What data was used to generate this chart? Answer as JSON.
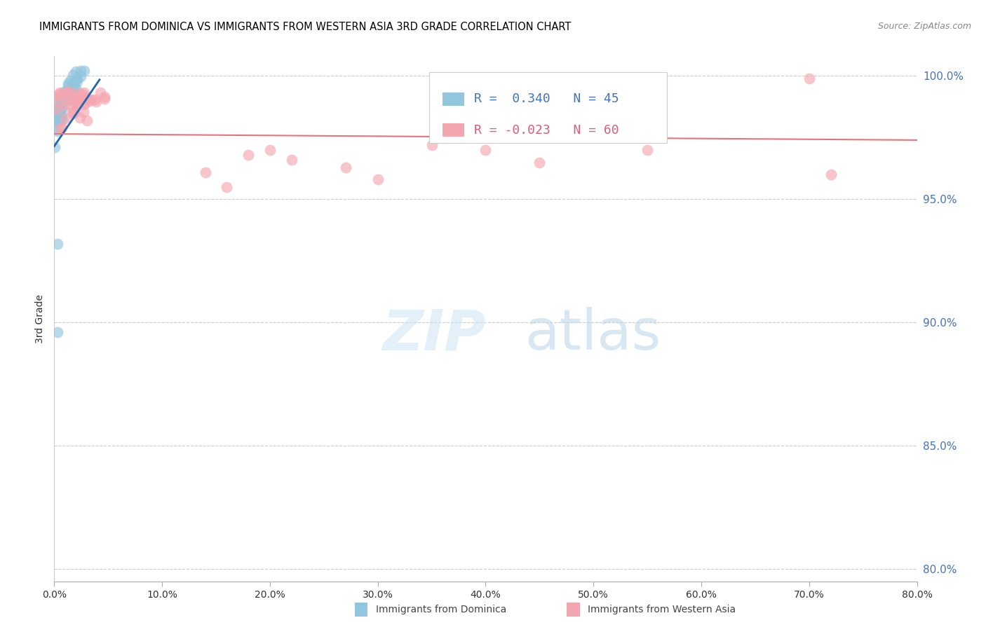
{
  "title": "IMMIGRANTS FROM DOMINICA VS IMMIGRANTS FROM WESTERN ASIA 3RD GRADE CORRELATION CHART",
  "source": "Source: ZipAtlas.com",
  "ylabel": "3rd Grade",
  "legend_label1": "Immigrants from Dominica",
  "legend_label2": "Immigrants from Western Asia",
  "R1": 0.34,
  "N1": 45,
  "R2": -0.023,
  "N2": 60,
  "color1": "#92c5de",
  "color2": "#f4a6b0",
  "trendline1_color": "#2166ac",
  "trendline2_color": "#e8737a",
  "xlim": [
    0.0,
    0.8
  ],
  "ylim": [
    0.795,
    1.008
  ],
  "xticks": [
    0.0,
    0.1,
    0.2,
    0.3,
    0.4,
    0.5,
    0.6,
    0.7,
    0.8
  ],
  "yticks": [
    0.8,
    0.85,
    0.9,
    0.95,
    1.0
  ],
  "xtick_labels": [
    "0.0%",
    "10.0%",
    "20.0%",
    "30.0%",
    "40.0%",
    "50.0%",
    "60.0%",
    "70.0%",
    "80.0%"
  ],
  "ytick_labels": [
    "80.0%",
    "85.0%",
    "90.0%",
    "95.0%",
    "100.0%"
  ],
  "watermark_zip": "ZIP",
  "watermark_atlas": "atlas",
  "legend_R1_text": "R =  0.340   N = 45",
  "legend_R2_text": "R = -0.023   N = 60",
  "legend_color1": "#4472c4",
  "legend_color2": "#e05c7a"
}
